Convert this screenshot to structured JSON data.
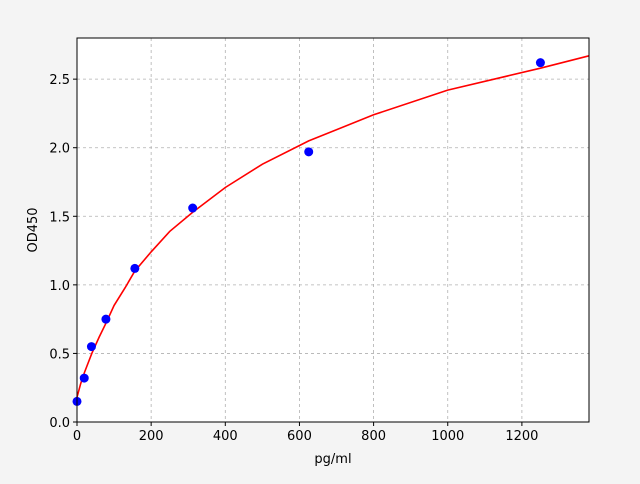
{
  "chart_data": {
    "type": "scatter",
    "title": "",
    "xlabel": "pg/ml",
    "ylabel": "OD450",
    "xlim": [
      0,
      1381
    ],
    "ylim": [
      0,
      2.8
    ],
    "grid": true,
    "xticks": [
      0,
      200,
      400,
      600,
      800,
      1000,
      1200
    ],
    "xtick_labels": [
      "0",
      "200",
      "400",
      "600",
      "800",
      "1000",
      "1200"
    ],
    "yticks": [
      0,
      0.5,
      1.0,
      1.5,
      2.0,
      2.5
    ],
    "ytick_labels": [
      "0.0",
      "0.5",
      "1.0",
      "1.5",
      "2.0",
      "2.5"
    ],
    "points": {
      "color": "#0000ff",
      "x": [
        0,
        19.5,
        39,
        78,
        156,
        312,
        625,
        1250
      ],
      "y": [
        0.15,
        0.32,
        0.55,
        0.75,
        1.12,
        1.56,
        1.97,
        2.62
      ]
    },
    "fit_curve": {
      "color": "#ff0000",
      "x": [
        0,
        10,
        20,
        40,
        60,
        78,
        100,
        130,
        156,
        200,
        250,
        312,
        400,
        500,
        625,
        800,
        1000,
        1250,
        1381
      ],
      "y": [
        0.18,
        0.28,
        0.36,
        0.5,
        0.62,
        0.72,
        0.85,
        0.98,
        1.1,
        1.24,
        1.39,
        1.53,
        1.71,
        1.88,
        2.05,
        2.24,
        2.42,
        2.58,
        2.67
      ]
    }
  }
}
